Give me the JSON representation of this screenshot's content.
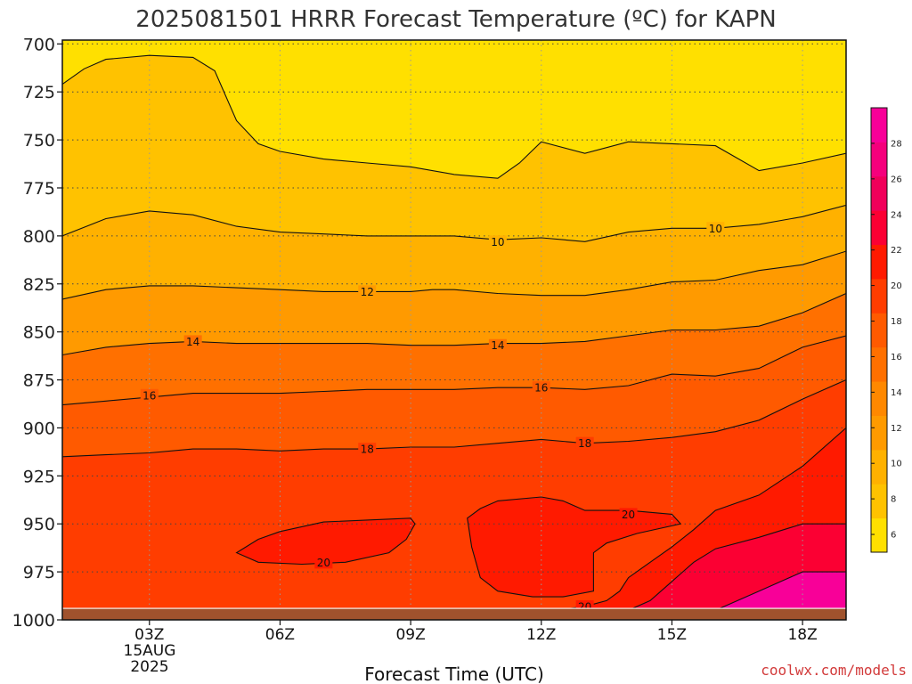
{
  "chart_data": {
    "type": "contour",
    "title": "2025081501 HRRR Forecast Temperature (ºC) for KAPN",
    "xlabel": "Forecast Time (UTC)",
    "credit": "coolwx.com/models",
    "date_label_line1": "15AUG",
    "date_label_line2": "2025",
    "x_hours": [
      1,
      19
    ],
    "x_ticks": [
      {
        "hour": 3,
        "label": "03Z"
      },
      {
        "hour": 6,
        "label": "06Z"
      },
      {
        "hour": 9,
        "label": "09Z"
      },
      {
        "hour": 12,
        "label": "12Z"
      },
      {
        "hour": 15,
        "label": "15Z"
      },
      {
        "hour": 18,
        "label": "18Z"
      }
    ],
    "y_axis": {
      "unit": "hPa",
      "range": [
        1000,
        698
      ],
      "inverted": true
    },
    "y_ticks": [
      700,
      725,
      750,
      775,
      800,
      825,
      850,
      875,
      900,
      925,
      950,
      975,
      1000
    ],
    "grid": true,
    "colorbar": {
      "ticks": [
        6,
        8,
        10,
        12,
        14,
        16,
        18,
        20,
        22,
        24,
        26,
        28
      ],
      "range": [
        5,
        30
      ],
      "colors": [
        "#ffe000",
        "#ffc200",
        "#ffb100",
        "#ff9a00",
        "#ff8800",
        "#ff7000",
        "#ff5a00",
        "#ff3d00",
        "#ff1a00",
        "#fb0033",
        "#f0005a",
        "#f5007c",
        "#f80098"
      ]
    },
    "fill_levels": [
      {
        "level": 6,
        "color": "#ffe000"
      },
      {
        "level": 8,
        "color": "#ffc200"
      },
      {
        "level": 10,
        "color": "#ffb100"
      },
      {
        "level": 12,
        "color": "#ff9a00"
      },
      {
        "level": 14,
        "color": "#ff7000"
      },
      {
        "level": 16,
        "color": "#ff5a00"
      },
      {
        "level": 18,
        "color": "#ff3d00"
      },
      {
        "level": 20,
        "color": "#ff1a00"
      },
      {
        "level": 22,
        "color": "#fb0033"
      },
      {
        "level": 24,
        "color": "#f80098"
      }
    ],
    "contours": [
      {
        "level": 8,
        "points": [
          [
            1,
            721
          ],
          [
            1.5,
            713
          ],
          [
            2,
            708
          ],
          [
            3,
            706
          ],
          [
            4,
            707
          ],
          [
            4.5,
            714
          ],
          [
            5,
            740
          ],
          [
            5.5,
            752
          ],
          [
            6,
            756
          ],
          [
            7,
            760
          ],
          [
            8,
            762
          ],
          [
            9,
            764
          ],
          [
            10,
            768
          ],
          [
            11,
            770
          ],
          [
            11.5,
            762
          ],
          [
            12,
            751
          ],
          [
            13,
            757
          ],
          [
            14,
            751
          ],
          [
            15,
            752
          ],
          [
            16,
            753
          ],
          [
            17,
            766
          ],
          [
            18,
            762
          ],
          [
            19,
            757
          ]
        ]
      },
      {
        "level": 10,
        "points": [
          [
            1,
            800
          ],
          [
            2,
            791
          ],
          [
            3,
            787
          ],
          [
            4,
            789
          ],
          [
            5,
            795
          ],
          [
            6,
            798
          ],
          [
            7,
            799
          ],
          [
            8,
            800
          ],
          [
            9,
            800
          ],
          [
            10,
            800
          ],
          [
            11,
            802
          ],
          [
            12,
            801
          ],
          [
            13,
            803
          ],
          [
            14,
            798
          ],
          [
            15,
            796
          ],
          [
            16,
            796
          ],
          [
            17,
            794
          ],
          [
            18,
            790
          ],
          [
            19,
            784
          ]
        ]
      },
      {
        "level": 12,
        "points": [
          [
            1,
            833
          ],
          [
            2,
            828
          ],
          [
            3,
            826
          ],
          [
            4,
            826
          ],
          [
            5,
            827
          ],
          [
            6,
            828
          ],
          [
            7,
            829
          ],
          [
            8,
            829
          ],
          [
            9,
            829
          ],
          [
            9.5,
            828
          ],
          [
            10,
            828
          ],
          [
            11,
            830
          ],
          [
            12,
            831
          ],
          [
            13,
            831
          ],
          [
            14,
            828
          ],
          [
            15,
            824
          ],
          [
            16,
            823
          ],
          [
            17,
            818
          ],
          [
            18,
            815
          ],
          [
            19,
            808
          ]
        ]
      },
      {
        "level": 14,
        "points": [
          [
            1,
            862
          ],
          [
            2,
            858
          ],
          [
            3,
            856
          ],
          [
            4,
            855
          ],
          [
            5,
            856
          ],
          [
            6,
            856
          ],
          [
            7,
            856
          ],
          [
            8,
            856
          ],
          [
            9,
            857
          ],
          [
            10,
            857
          ],
          [
            11,
            856
          ],
          [
            12,
            856
          ],
          [
            13,
            855
          ],
          [
            14,
            852
          ],
          [
            15,
            849
          ],
          [
            16,
            849
          ],
          [
            17,
            847
          ],
          [
            18,
            840
          ],
          [
            19,
            830
          ]
        ]
      },
      {
        "level": 16,
        "points": [
          [
            1,
            888
          ],
          [
            2,
            886
          ],
          [
            3,
            884
          ],
          [
            4,
            882
          ],
          [
            5,
            882
          ],
          [
            6,
            882
          ],
          [
            7,
            881
          ],
          [
            8,
            880
          ],
          [
            9,
            880
          ],
          [
            10,
            880
          ],
          [
            11,
            879
          ],
          [
            12,
            879
          ],
          [
            13,
            880
          ],
          [
            14,
            878
          ],
          [
            15,
            872
          ],
          [
            16,
            873
          ],
          [
            17,
            869
          ],
          [
            18,
            858
          ],
          [
            19,
            852
          ]
        ]
      },
      {
        "level": 18,
        "points": [
          [
            1,
            915
          ],
          [
            2,
            914
          ],
          [
            3,
            913
          ],
          [
            4,
            911
          ],
          [
            5,
            911
          ],
          [
            6,
            912
          ],
          [
            7,
            911
          ],
          [
            8,
            911
          ],
          [
            9,
            910
          ],
          [
            10,
            910
          ],
          [
            11,
            908
          ],
          [
            12,
            906
          ],
          [
            13,
            908
          ],
          [
            14,
            907
          ],
          [
            15,
            905
          ],
          [
            16,
            902
          ],
          [
            17,
            896
          ],
          [
            18,
            885
          ],
          [
            19,
            875
          ]
        ]
      },
      {
        "level": 20,
        "points": [
          [
            11,
            1000
          ],
          [
            12,
            996
          ],
          [
            13,
            993
          ],
          [
            13.5,
            990
          ],
          [
            13.8,
            985
          ],
          [
            14,
            978
          ],
          [
            14.5,
            970
          ],
          [
            15,
            962
          ],
          [
            15.5,
            953
          ],
          [
            16,
            943
          ],
          [
            17,
            935
          ],
          [
            18,
            920
          ],
          [
            19,
            900
          ]
        ]
      },
      {
        "level": 20,
        "closed": true,
        "points": [
          [
            5,
            965
          ],
          [
            5.5,
            958
          ],
          [
            6,
            954
          ],
          [
            7,
            949
          ],
          [
            8,
            948
          ],
          [
            9,
            947
          ],
          [
            9.1,
            950
          ],
          [
            8.9,
            958
          ],
          [
            8.5,
            965
          ],
          [
            7.5,
            970
          ],
          [
            6.5,
            971
          ],
          [
            5.5,
            970
          ]
        ]
      },
      {
        "level": 20,
        "closed": true,
        "points": [
          [
            10.3,
            947
          ],
          [
            10.6,
            942
          ],
          [
            11,
            938
          ],
          [
            12,
            936
          ],
          [
            12.5,
            938
          ],
          [
            13,
            943
          ],
          [
            14,
            943
          ],
          [
            15,
            945
          ],
          [
            15.2,
            950
          ],
          [
            14.2,
            955
          ],
          [
            13.5,
            960
          ],
          [
            13.2,
            965
          ],
          [
            13.2,
            985
          ],
          [
            12.5,
            988
          ],
          [
            11.8,
            988
          ],
          [
            11,
            985
          ],
          [
            10.6,
            978
          ],
          [
            10.4,
            962
          ]
        ]
      },
      {
        "level": 22,
        "points": [
          [
            13.5,
            1000
          ],
          [
            14.5,
            990
          ],
          [
            15,
            980
          ],
          [
            15.5,
            970
          ],
          [
            16,
            963
          ],
          [
            17,
            957
          ],
          [
            18,
            950
          ],
          [
            19,
            950
          ]
        ]
      },
      {
        "level": 24,
        "points": [
          [
            15.5,
            1000
          ],
          [
            16,
            995
          ],
          [
            17,
            985
          ],
          [
            17.5,
            980
          ],
          [
            18,
            975
          ],
          [
            19,
            975
          ]
        ]
      }
    ],
    "contour_labels": [
      {
        "text": "10",
        "hour": 11,
        "p": 803
      },
      {
        "text": "10",
        "hour": 16,
        "p": 796
      },
      {
        "text": "12",
        "hour": 8,
        "p": 829
      },
      {
        "text": "14",
        "hour": 4,
        "p": 855
      },
      {
        "text": "14",
        "hour": 11,
        "p": 857
      },
      {
        "text": "16",
        "hour": 3,
        "p": 883
      },
      {
        "text": "16",
        "hour": 12,
        "p": 879
      },
      {
        "text": "18",
        "hour": 8,
        "p": 911
      },
      {
        "text": "18",
        "hour": 13,
        "p": 908
      },
      {
        "text": "20",
        "hour": 7,
        "p": 970
      },
      {
        "text": "20",
        "hour": 14,
        "p": 945
      },
      {
        "text": "20",
        "hour": 13,
        "p": 993
      }
    ],
    "ground_pressure": 994
  }
}
